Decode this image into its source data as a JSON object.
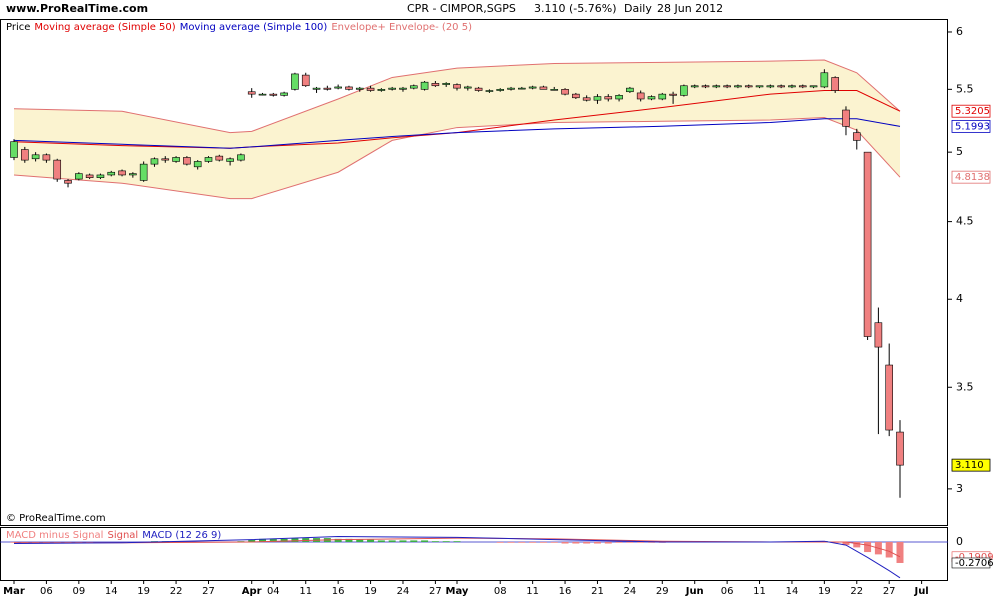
{
  "chart_data": {
    "type": "candlestick",
    "site": "www.ProRealTime.com",
    "symbol": "CPR - CIMPOR,SGPS",
    "quote": "3.110 (-5.76%)",
    "period": "Daily",
    "date": "28 Jun 2012",
    "watermark": "© ProRealTime.com",
    "price_label": "Price",
    "last_price_label": "3.110",
    "categories": [
      "Mar",
      null,
      null,
      "06",
      null,
      null,
      "09",
      null,
      null,
      "14",
      null,
      null,
      "19",
      null,
      null,
      "22",
      null,
      null,
      "27",
      null,
      null,
      null,
      "Apr",
      null,
      "04",
      null,
      null,
      "11",
      null,
      null,
      "16",
      null,
      null,
      "19",
      null,
      null,
      "24",
      null,
      null,
      "27",
      null,
      "May",
      null,
      null,
      null,
      "08",
      null,
      null,
      "11",
      null,
      null,
      "16",
      null,
      null,
      "21",
      null,
      null,
      "24",
      null,
      null,
      "29",
      null,
      null,
      "Jun",
      null,
      null,
      "06",
      null,
      null,
      "11",
      null,
      null,
      "14",
      null,
      null,
      "19",
      null,
      null,
      "22",
      null,
      null,
      "27",
      null,
      null,
      "Jul"
    ],
    "open": [
      4.96,
      5.02,
      4.95,
      4.98,
      4.94,
      4.79,
      4.8,
      4.83,
      4.81,
      4.83,
      4.86,
      4.83,
      4.79,
      4.91,
      4.95,
      4.93,
      4.96,
      4.89,
      4.93,
      4.97,
      4.93,
      4.94,
      5.48,
      5.46,
      5.46,
      5.45,
      5.5,
      5.62,
      5.5,
      5.51,
      5.51,
      5.52,
      5.5,
      5.51,
      5.49,
      5.5,
      5.5,
      5.51,
      5.5,
      5.55,
      5.54,
      5.54,
      5.51,
      5.51,
      5.49,
      5.49,
      5.5,
      5.51,
      5.51,
      5.52,
      5.5,
      5.5,
      5.46,
      5.43,
      5.41,
      5.44,
      5.42,
      5.48,
      5.47,
      5.42,
      5.42,
      5.46,
      5.45,
      5.52,
      5.53,
      5.52,
      5.53,
      5.52,
      5.53,
      5.52,
      5.52,
      5.53,
      5.52,
      5.53,
      5.52,
      5.52,
      5.6,
      5.33,
      5.15,
      5.0,
      3.86,
      3.62,
      3.27,
      null,
      null
    ],
    "high": [
      5.1,
      5.04,
      5.0,
      4.99,
      4.95,
      4.8,
      4.85,
      4.84,
      4.84,
      4.86,
      4.87,
      4.85,
      4.93,
      4.96,
      4.97,
      4.97,
      4.97,
      4.94,
      4.97,
      4.98,
      4.96,
      4.99,
      5.51,
      5.47,
      5.47,
      5.48,
      5.64,
      5.64,
      5.52,
      5.53,
      5.54,
      5.53,
      5.52,
      5.53,
      5.51,
      5.52,
      5.52,
      5.54,
      5.57,
      5.57,
      5.56,
      5.55,
      5.53,
      5.52,
      5.5,
      5.51,
      5.52,
      5.52,
      5.53,
      5.53,
      5.52,
      5.51,
      5.47,
      5.45,
      5.46,
      5.46,
      5.46,
      5.52,
      5.49,
      5.45,
      5.47,
      5.48,
      5.54,
      5.54,
      5.54,
      5.54,
      5.54,
      5.54,
      5.54,
      5.53,
      5.54,
      5.54,
      5.54,
      5.54,
      5.53,
      5.67,
      5.61,
      5.36,
      5.18,
      5.0,
      3.95,
      3.74,
      3.33,
      null,
      null
    ],
    "low": [
      4.94,
      4.92,
      4.93,
      4.92,
      4.78,
      4.74,
      4.79,
      4.8,
      4.8,
      4.82,
      4.82,
      4.81,
      4.78,
      4.89,
      4.92,
      4.92,
      4.9,
      4.87,
      4.92,
      4.93,
      4.9,
      4.93,
      5.43,
      5.45,
      5.44,
      5.44,
      5.49,
      5.52,
      5.47,
      5.49,
      5.5,
      5.49,
      5.48,
      5.48,
      5.48,
      5.49,
      5.48,
      5.5,
      5.49,
      5.52,
      5.52,
      5.49,
      5.49,
      5.48,
      5.47,
      5.48,
      5.49,
      5.5,
      5.5,
      5.5,
      5.49,
      5.45,
      5.42,
      5.4,
      5.38,
      5.4,
      5.4,
      5.47,
      5.4,
      5.41,
      5.41,
      5.38,
      5.44,
      5.51,
      5.51,
      5.51,
      5.51,
      5.51,
      5.51,
      5.51,
      5.51,
      5.51,
      5.51,
      5.51,
      5.51,
      5.51,
      5.47,
      5.13,
      5.02,
      3.76,
      3.26,
      3.25,
      2.96,
      null,
      null
    ],
    "close": [
      5.08,
      4.94,
      4.98,
      4.94,
      4.8,
      4.77,
      4.84,
      4.81,
      4.83,
      4.85,
      4.83,
      4.84,
      4.91,
      4.95,
      4.94,
      4.96,
      4.91,
      4.93,
      4.96,
      4.94,
      4.95,
      4.98,
      5.46,
      5.46,
      5.45,
      5.47,
      5.63,
      5.53,
      5.51,
      5.5,
      5.52,
      5.5,
      5.51,
      5.49,
      5.5,
      5.51,
      5.51,
      5.53,
      5.56,
      5.53,
      5.55,
      5.51,
      5.52,
      5.49,
      5.49,
      5.5,
      5.51,
      5.51,
      5.52,
      5.5,
      5.5,
      5.46,
      5.43,
      5.41,
      5.44,
      5.42,
      5.45,
      5.51,
      5.42,
      5.44,
      5.46,
      5.45,
      5.53,
      5.53,
      5.52,
      5.53,
      5.52,
      5.53,
      5.52,
      5.53,
      5.53,
      5.52,
      5.53,
      5.52,
      5.53,
      5.64,
      5.49,
      5.2,
      5.09,
      3.78,
      3.72,
      3.28,
      3.11,
      null,
      null
    ],
    "up_color": "#66dd66",
    "down_color": "#f08080",
    "envelope": {
      "name": "Envelope+ Envelope- (20 5)",
      "color": "#e07070",
      "fill": "#fbf3d0",
      "x": [
        0,
        10,
        20,
        22,
        30,
        35,
        41,
        50,
        60,
        70,
        75,
        78,
        82
      ],
      "upper": [
        5.34,
        5.32,
        5.15,
        5.16,
        5.42,
        5.6,
        5.68,
        5.72,
        5.73,
        5.74,
        5.75,
        5.64,
        5.32
      ],
      "lower": [
        4.83,
        4.77,
        4.66,
        4.66,
        4.85,
        5.09,
        5.19,
        5.23,
        5.24,
        5.25,
        5.27,
        5.17,
        4.8138
      ]
    },
    "overlays": [
      {
        "name": "Moving average (Simple 50)",
        "color": "#e00000",
        "x": [
          0,
          10,
          20,
          22,
          30,
          35,
          41,
          50,
          60,
          70,
          75,
          78,
          82
        ],
        "values": [
          5.08,
          5.05,
          5.03,
          5.04,
          5.07,
          5.11,
          5.15,
          5.25,
          5.35,
          5.46,
          5.49,
          5.49,
          5.3205
        ]
      },
      {
        "name": "Moving average (Simple 100)",
        "color": "#0000c0",
        "x": [
          0,
          10,
          20,
          22,
          30,
          35,
          41,
          50,
          60,
          70,
          75,
          78,
          82
        ],
        "values": [
          5.09,
          5.06,
          5.03,
          5.04,
          5.09,
          5.12,
          5.15,
          5.18,
          5.2,
          5.23,
          5.26,
          5.26,
          5.1993
        ]
      }
    ],
    "ylim": [
      2.84,
      6.11
    ],
    "yticks": [
      3,
      3.5,
      4,
      4.5,
      5,
      5.5,
      6
    ],
    "log_scale": true,
    "macd": {
      "ylim": [
        -0.49,
        0.18
      ],
      "yticks": [
        0
      ],
      "hist_name": "MACD minus Signal",
      "hist_up": "#3cb043",
      "hist_down": "#f08080",
      "histogram": [
        -0.01,
        -0.01,
        -0.01,
        -0.01,
        -0.01,
        -0.01,
        -0.01,
        -0.01,
        0,
        0,
        0,
        0,
        0,
        0.01,
        0.01,
        0.01,
        0,
        0,
        0,
        0,
        0,
        0.01,
        0.03,
        0.04,
        0.04,
        0.04,
        0.05,
        0.05,
        0.05,
        0.05,
        0.04,
        0.04,
        0.03,
        0.03,
        0.02,
        0.02,
        0.02,
        0.02,
        0.02,
        0.01,
        0.01,
        0.01,
        0,
        0,
        0,
        -0.01,
        -0.01,
        -0.01,
        -0.01,
        -0.01,
        -0.01,
        -0.02,
        -0.02,
        -0.02,
        -0.02,
        -0.02,
        -0.01,
        -0.01,
        -0.01,
        -0.01,
        -0.01,
        0,
        0,
        0,
        0,
        0,
        0,
        0,
        0,
        0,
        0,
        0,
        0,
        0,
        0,
        0.01,
        -0.01,
        -0.04,
        -0.07,
        -0.13,
        -0.16,
        -0.2,
        -0.2706,
        null,
        null
      ],
      "x": [
        0,
        10,
        22,
        30,
        41,
        50,
        60,
        70,
        75,
        77,
        79,
        81,
        82
      ],
      "signal_name": "Signal",
      "signal_color": "#e05050",
      "signal": [
        -0.01,
        -0.01,
        0.0,
        0.03,
        0.05,
        0.04,
        0.01,
        0.0,
        0.0,
        0.0,
        -0.04,
        -0.12,
        -0.1909
      ],
      "macd_name": "MACD (12 26 9)",
      "macd_color": "#2020c0",
      "macd": [
        -0.02,
        -0.01,
        0.03,
        0.07,
        0.06,
        0.03,
        0.0,
        0.0,
        0.01,
        -0.04,
        -0.2,
        -0.37,
        -0.4615
      ]
    }
  }
}
